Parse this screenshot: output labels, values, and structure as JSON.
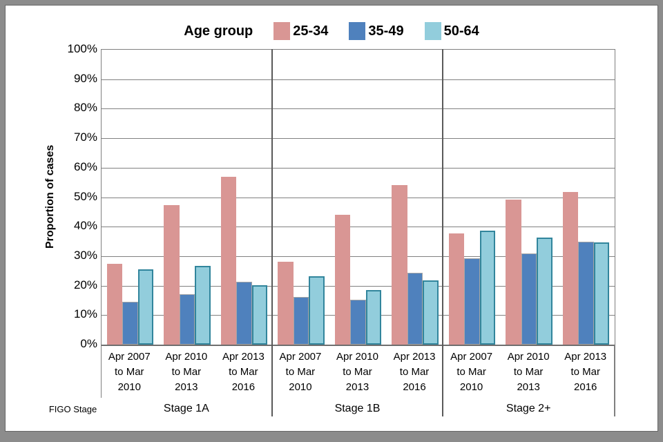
{
  "page": {
    "background": "#8c8c8c",
    "panel_background": "#ffffff",
    "panel_border": "#666666"
  },
  "legend": {
    "title": "Age group",
    "items": [
      {
        "label": "25-34",
        "color": "#D99694"
      },
      {
        "label": "35-49",
        "color": "#4F81BD"
      },
      {
        "label": "50-64",
        "color": "#92CDDC"
      }
    ]
  },
  "y_axis": {
    "title": "Proportion of cases",
    "ticks": [
      "100%",
      "90%",
      "80%",
      "70%",
      "60%",
      "50%",
      "40%",
      "30%",
      "20%",
      "10%",
      "0%"
    ]
  },
  "x_axis": {
    "corner_label": "FIGO Stage"
  },
  "chart_data": {
    "type": "bar",
    "title": "Age group",
    "xlabel": "FIGO Stage",
    "ylabel": "Proportion of cases",
    "ylim": [
      0,
      100
    ],
    "y_tick_step": 10,
    "grid": true,
    "legend_position": "top",
    "group_labels": [
      "Stage 1A",
      "Stage 1B",
      "Stage 2+"
    ],
    "categories_per_group": [
      "Apr 2007\nto Mar\n2010",
      "Apr 2010\nto Mar\n2013",
      "Apr 2013\nto Mar\n2016"
    ],
    "series": [
      {
        "name": "25-34",
        "color": "#D99694",
        "border_color": null,
        "border_width": 0,
        "values": [
          27.5,
          47.3,
          57.0,
          28.2,
          44.0,
          54.0,
          37.8,
          49.2,
          51.8
        ]
      },
      {
        "name": "35-49",
        "color": "#4F81BD",
        "border_color": "#A6A6A6",
        "border_width": 1,
        "values": [
          14.5,
          17.0,
          21.2,
          16.2,
          15.2,
          24.4,
          29.2,
          31.0,
          34.8
        ]
      },
      {
        "name": "50-64",
        "color": "#92CDDC",
        "border_color": "#31859C",
        "border_width": 2,
        "values": [
          25.5,
          26.7,
          20.1,
          23.2,
          18.6,
          21.9,
          38.7,
          36.3,
          34.6
        ]
      }
    ]
  },
  "style": {
    "gridline_color": "#808080",
    "separator_color": "#595959",
    "axis_frame_color": "#7f7f7f"
  }
}
